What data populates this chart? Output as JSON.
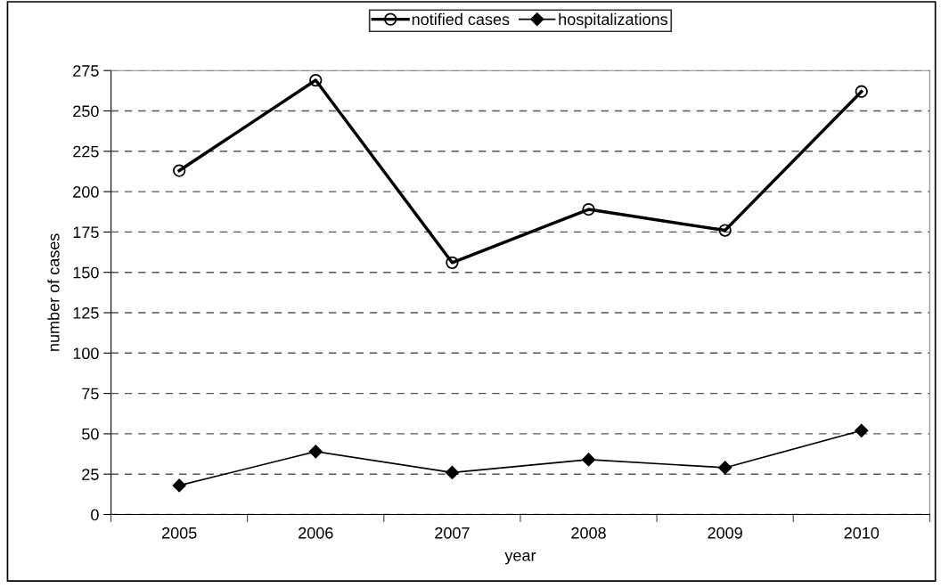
{
  "chart_data": {
    "type": "line",
    "xlabel": "year",
    "ylabel": "number of cases",
    "categories": [
      "2005",
      "2006",
      "2007",
      "2008",
      "2009",
      "2010"
    ],
    "series": [
      {
        "name": "notified cases",
        "color": "#000000",
        "marker": "circle",
        "values": [
          213,
          269,
          156,
          189,
          176,
          262
        ]
      },
      {
        "name": "hospitalizations",
        "color": "#000000",
        "marker": "diamond",
        "values": [
          18,
          39,
          26,
          34,
          29,
          52
        ]
      }
    ],
    "ylim": [
      0,
      275
    ],
    "yticks": [
      0,
      25,
      50,
      75,
      100,
      125,
      150,
      175,
      200,
      225,
      250,
      275
    ],
    "grid": "y",
    "legend": "top",
    "line_style": "solid"
  }
}
